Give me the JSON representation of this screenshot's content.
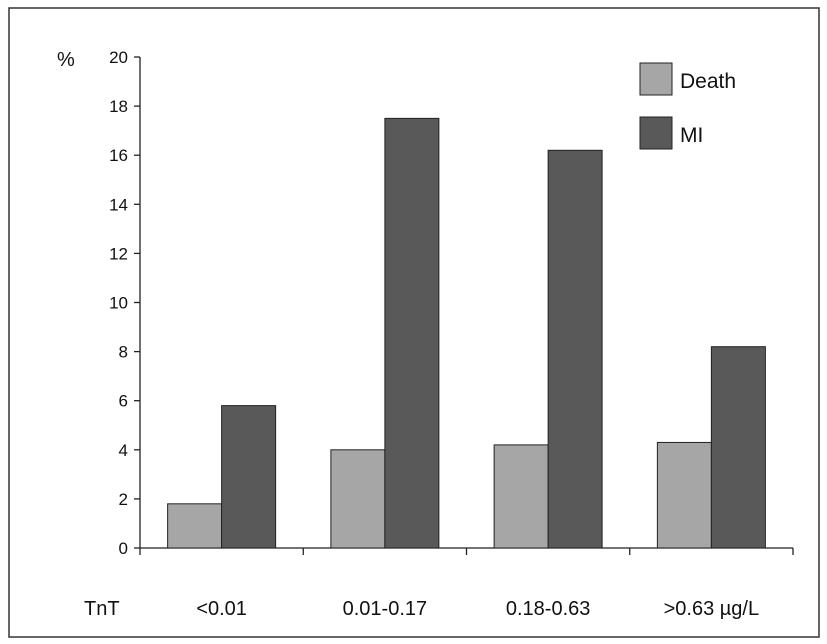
{
  "chart_data": {
    "type": "bar",
    "title": "",
    "ylabel": "%",
    "xlabel": "TnT",
    "categories": [
      "<0.01",
      "0.01-0.17",
      "0.18-0.63",
      ">0.63 µg/L"
    ],
    "series": [
      {
        "name": "Death",
        "values": [
          1.8,
          4.0,
          4.2,
          4.3
        ],
        "color": "#a6a6a6"
      },
      {
        "name": "MI",
        "values": [
          5.8,
          17.5,
          16.2,
          8.2
        ],
        "color": "#595959"
      }
    ],
    "ylim": [
      0,
      20
    ],
    "yticks": [
      0,
      2,
      4,
      6,
      8,
      10,
      12,
      14,
      16,
      18,
      20
    ],
    "grid": false,
    "legend_position": "top-right"
  }
}
